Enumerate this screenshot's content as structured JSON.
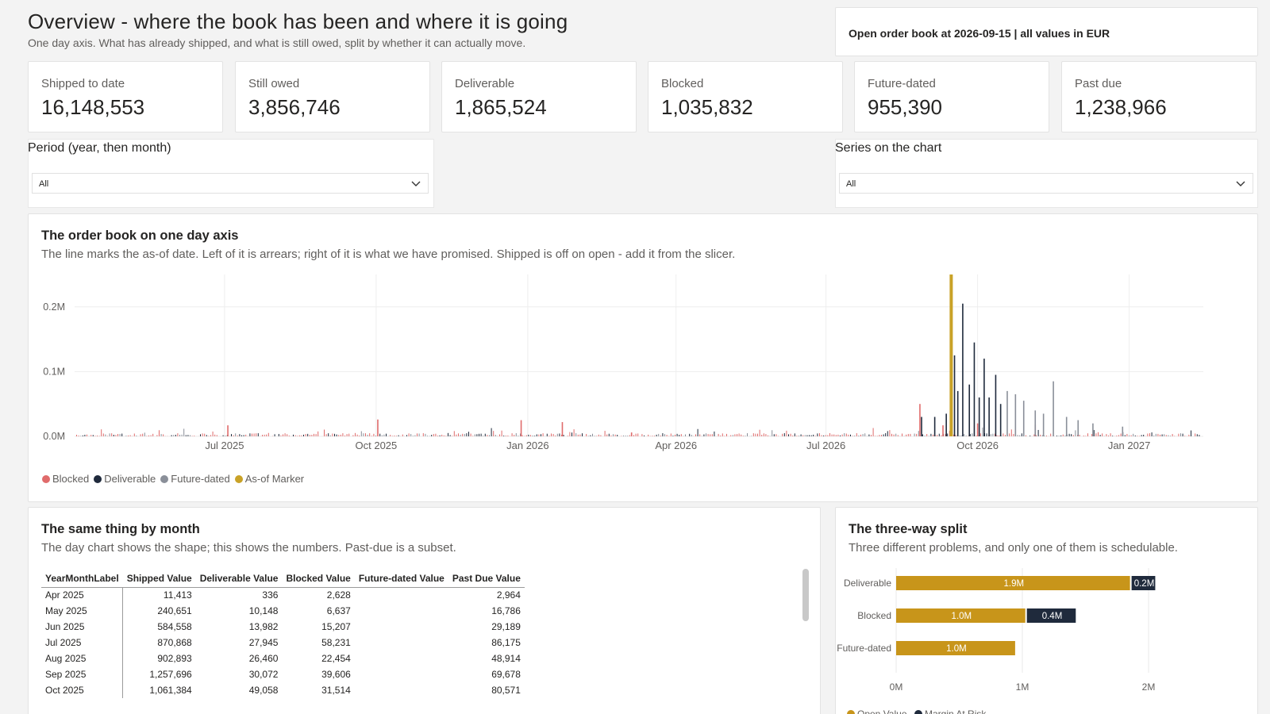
{
  "header": {
    "title": "Overview - where the book has been and where it is going",
    "subtitle": "One day axis. What has already shipped, and what is still owed, split by whether it can actually move.",
    "asof": "Open order book at 2026-09-15 | all values in EUR"
  },
  "kpis": [
    {
      "label": "Shipped to date",
      "value": "16,148,553"
    },
    {
      "label": "Still owed",
      "value": "3,856,746"
    },
    {
      "label": "Deliverable",
      "value": "1,865,524"
    },
    {
      "label": "Blocked",
      "value": "1,035,832"
    },
    {
      "label": "Future-dated",
      "value": "955,390"
    },
    {
      "label": "Past due",
      "value": "1,238,966"
    }
  ],
  "slicers": {
    "period": {
      "title": "Period (year, then month)",
      "value": "All"
    },
    "series": {
      "title": "Series on the chart",
      "value": "All"
    }
  },
  "day_chart": {
    "title": "The order book on one day axis",
    "subtitle": "The line marks the as-of date. Left of it is arrears; right of it is what we have promised. Shipped is off on open - add it from the slicer.",
    "legend": [
      {
        "label": "Blocked",
        "color": "#e06b6b"
      },
      {
        "label": "Deliverable",
        "color": "#1f2a3c"
      },
      {
        "label": "Future-dated",
        "color": "#8a8f99"
      },
      {
        "label": "As-of Marker",
        "color": "#c9a227"
      }
    ]
  },
  "chart_data": [
    {
      "type": "bar",
      "title": "The order book on one day axis",
      "x_axis": {
        "type": "date",
        "range": [
          "2025-04-01",
          "2027-02-15"
        ],
        "tick_labels": [
          "Jul 2025",
          "Oct 2025",
          "Jan 2026",
          "Apr 2026",
          "Jul 2026",
          "Oct 2026",
          "Jan 2027"
        ]
      },
      "y_axis": {
        "range": [
          0,
          0.25
        ],
        "unit": "M EUR",
        "tick_labels": [
          "0.0M",
          "0.1M",
          "0.2M"
        ]
      },
      "grid": true,
      "legend_position": "bottom-left",
      "series": [
        {
          "name": "Blocked",
          "color": "#e06b6b",
          "points": [
            [
              "2025-07-03",
              0.017
            ],
            [
              "2025-10-02",
              0.026
            ],
            [
              "2025-12-28",
              0.025
            ],
            [
              "2026-01-22",
              0.022
            ],
            [
              "2026-03-05",
              0.006
            ],
            [
              "2026-08-27",
              0.05
            ],
            [
              "2026-09-10",
              0.017
            ],
            [
              "2026-10-01",
              0.02
            ],
            [
              "2026-11-05",
              0.018
            ]
          ]
        },
        {
          "name": "Deliverable",
          "color": "#1f2a3c",
          "points": [
            [
              "2026-08-28",
              0.03
            ],
            [
              "2026-09-05",
              0.03
            ],
            [
              "2026-09-12",
              0.035
            ],
            [
              "2026-09-17",
              0.125
            ],
            [
              "2026-09-19",
              0.07
            ],
            [
              "2026-09-22",
              0.205
            ],
            [
              "2026-09-26",
              0.08
            ],
            [
              "2026-09-29",
              0.145
            ],
            [
              "2026-10-02",
              0.06
            ],
            [
              "2026-10-05",
              0.12
            ],
            [
              "2026-10-08",
              0.06
            ],
            [
              "2026-10-12",
              0.095
            ],
            [
              "2026-10-15",
              0.05
            ]
          ]
        },
        {
          "name": "Future-dated",
          "color": "#8a8f99",
          "points": [
            [
              "2026-10-19",
              0.07
            ],
            [
              "2026-10-24",
              0.065
            ],
            [
              "2026-10-29",
              0.055
            ],
            [
              "2026-11-05",
              0.04
            ],
            [
              "2026-11-10",
              0.035
            ],
            [
              "2026-11-16",
              0.085
            ],
            [
              "2026-11-24",
              0.03
            ],
            [
              "2026-12-01",
              0.025
            ],
            [
              "2026-12-10",
              0.02
            ],
            [
              "2026-12-28",
              0.015
            ]
          ]
        },
        {
          "name": "As-of Marker",
          "color": "#c9a227",
          "points": [
            [
              "2026-09-15",
              0.25
            ]
          ]
        }
      ]
    },
    {
      "type": "bar",
      "orientation": "horizontal",
      "stacked": true,
      "title": "The three-way split",
      "categories": [
        "Deliverable",
        "Blocked",
        "Future-dated"
      ],
      "series": [
        {
          "name": "Open Value",
          "color": "#c8951a",
          "values": [
            1.865524,
            1.035832,
            0.95539
          ],
          "labels": [
            "1.9M",
            "1.0M",
            "1.0M"
          ]
        },
        {
          "name": "Margin At Risk",
          "color": "#1f2a3c",
          "values": [
            0.2,
            0.4,
            0
          ],
          "labels": [
            "0.2M",
            "0.4M",
            ""
          ]
        }
      ],
      "x_axis": {
        "range": [
          0,
          2.2
        ],
        "tick_labels": [
          "0M",
          "1M",
          "2M"
        ]
      }
    }
  ],
  "month_table": {
    "title": "The same thing by month",
    "subtitle": "The day chart shows the shape; this shows the numbers. Past-due is a subset.",
    "columns": [
      "YearMonthLabel",
      "Shipped Value",
      "Deliverable Value",
      "Blocked Value",
      "Future-dated Value",
      "Past Due Value"
    ],
    "rows": [
      [
        "Apr 2025",
        "11,413",
        "336",
        "2,628",
        "",
        "2,964"
      ],
      [
        "May 2025",
        "240,651",
        "10,148",
        "6,637",
        "",
        "16,786"
      ],
      [
        "Jun 2025",
        "584,558",
        "13,982",
        "15,207",
        "",
        "29,189"
      ],
      [
        "Jul 2025",
        "870,868",
        "27,945",
        "58,231",
        "",
        "86,175"
      ],
      [
        "Aug 2025",
        "902,893",
        "26,460",
        "22,454",
        "",
        "48,914"
      ],
      [
        "Sep 2025",
        "1,257,696",
        "30,072",
        "39,606",
        "",
        "69,678"
      ],
      [
        "Oct 2025",
        "1,061,384",
        "49,058",
        "31,514",
        "",
        "80,571"
      ]
    ]
  },
  "split_chart": {
    "title": "The three-way split",
    "subtitle": "Three different problems, and only one of them is schedulable.",
    "legend": [
      {
        "label": "Open Value",
        "color": "#c8951a"
      },
      {
        "label": "Margin At Risk",
        "color": "#1f2a3c"
      }
    ]
  }
}
